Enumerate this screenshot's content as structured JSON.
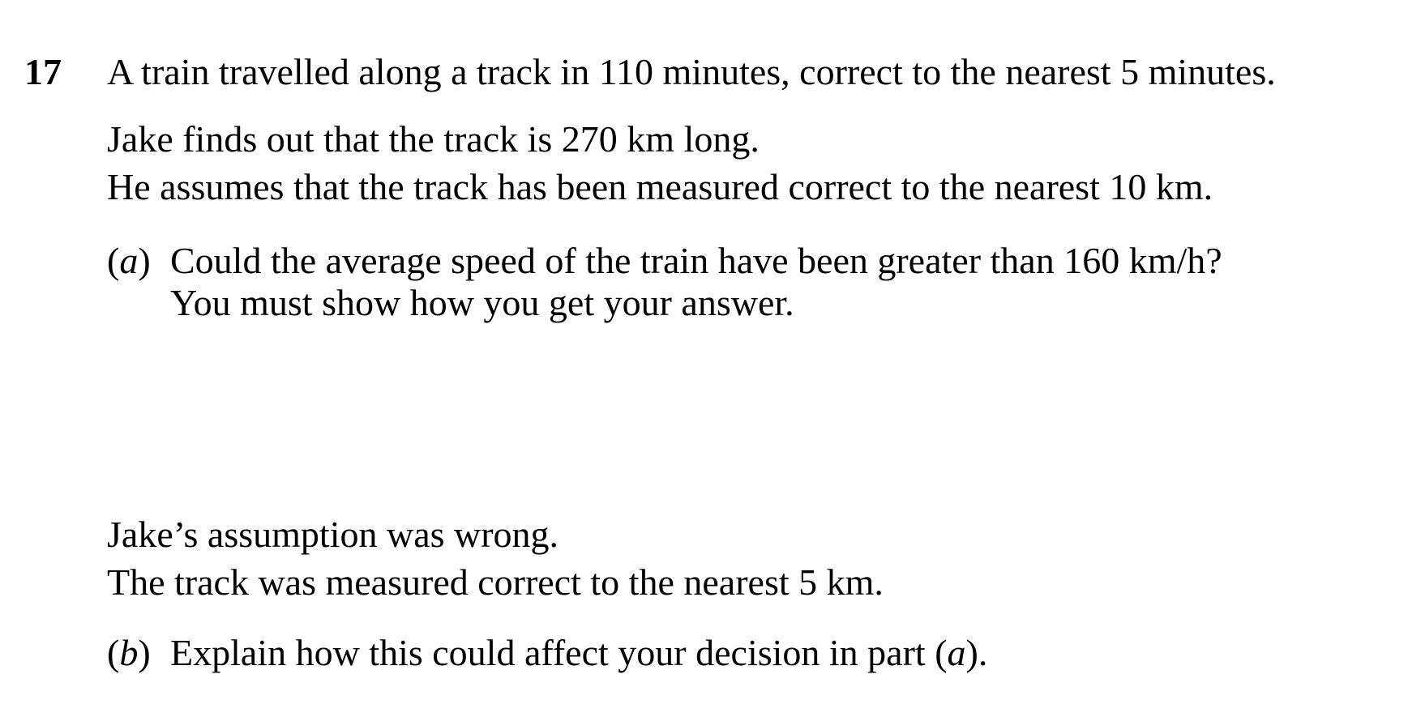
{
  "question": {
    "number": "17",
    "intro": [
      "A train travelled along a track in 110 minutes, correct to the nearest 5 minutes.",
      "Jake finds out that the track is 270 km long.",
      "He assumes that the track has been measured correct to the nearest 10 km."
    ],
    "part_a": {
      "label": "a",
      "lines": [
        "Could the average speed of the train have been greater than 160 km/h?",
        "You must show how you get your answer."
      ]
    },
    "middle": [
      "Jake’s assumption was wrong.",
      "The track was measured correct to the nearest 5 km."
    ],
    "part_b": {
      "label": "b",
      "text_before": "Explain how this could affect your decision in part (",
      "ref": "a",
      "text_after": ")."
    }
  }
}
